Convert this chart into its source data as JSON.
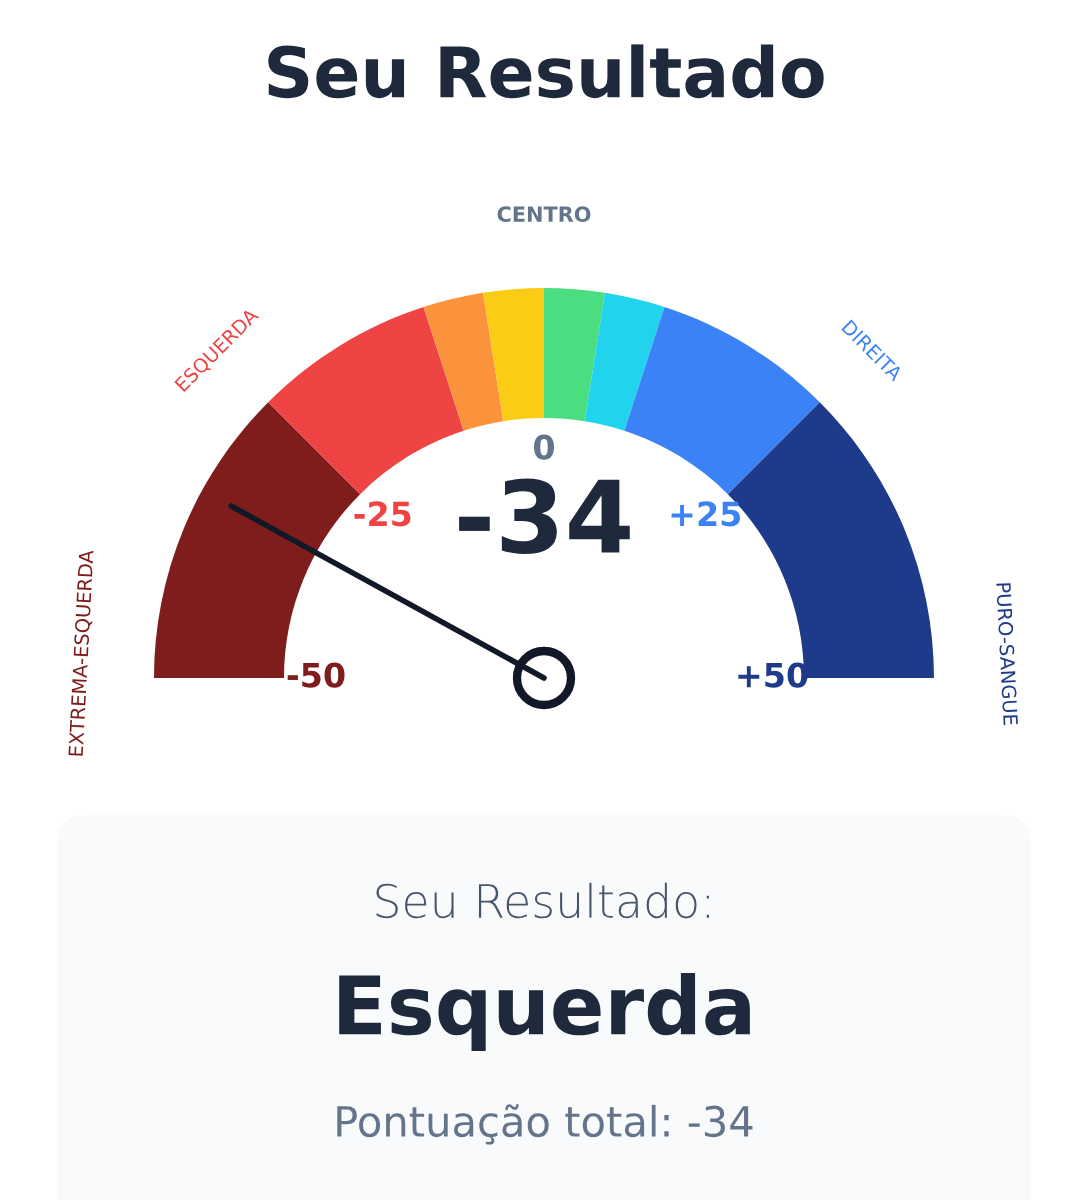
{
  "chart_data": {
    "type": "donut",
    "title": "Seu Resultado",
    "categories": [
      "EXTREMA-ESQUERDA",
      "ESQUERDA",
      null,
      null,
      null,
      null,
      "DIREITA",
      "PURO-SANGUE"
    ],
    "values": [
      25,
      15,
      5,
      5,
      5,
      5,
      15,
      25
    ],
    "colors": [
      "#7f1d1d",
      "#ef4444",
      "#fb923c",
      "#facc15",
      "#4ade80",
      "#22d3ee",
      "#3b82f6",
      "#1e3a8a"
    ],
    "needle": "EXTREMA-ESQUERDA",
    "annotations": [
      "CENTRO",
      "-50",
      "-25",
      "0",
      "+25",
      "+50",
      "-34",
      "Seu Resultado:",
      "Esquerda",
      "Pontuação total: -34"
    ]
  }
}
